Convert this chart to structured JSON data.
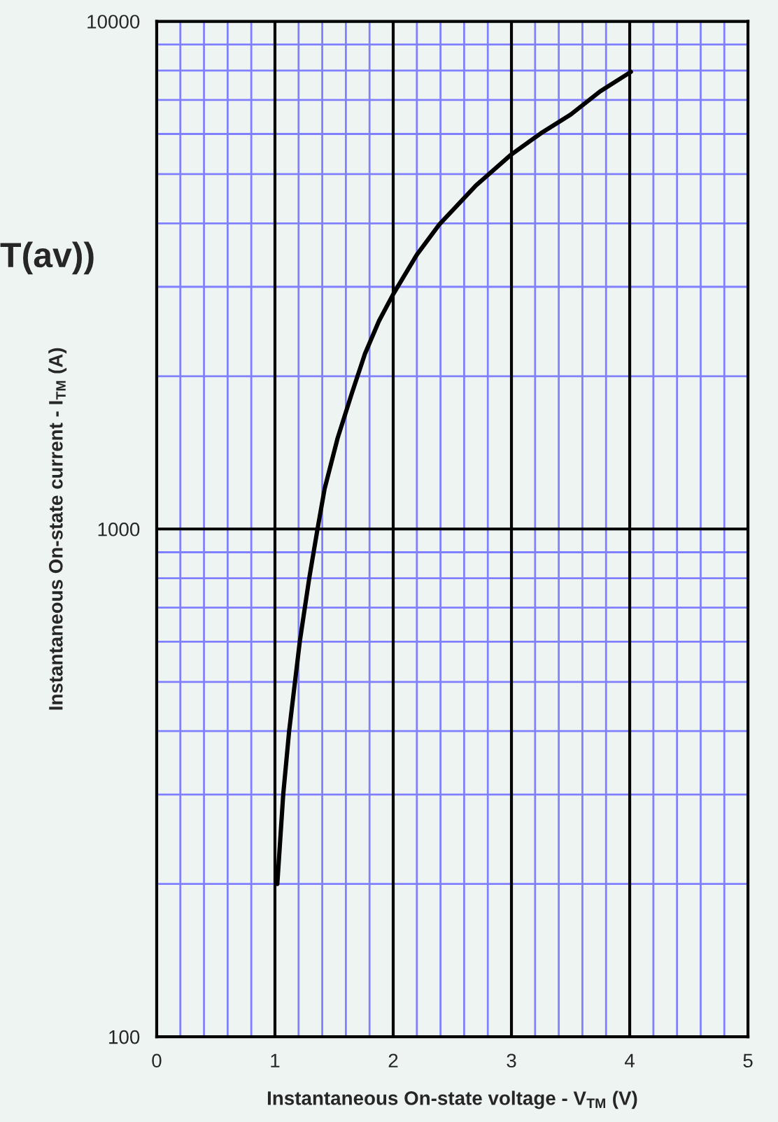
{
  "chart_data": {
    "type": "line",
    "xlabel": "Instantaneous On-state voltage - V$_{TM}$ (V)",
    "ylabel": "Instantaneous On-state current - I$_{TM}$ (A)",
    "annotations": [
      "T(av))"
    ],
    "series": [
      {
        "color": "#000000",
        "x": [
          1.02,
          1.07,
          1.12,
          1.21,
          1.29,
          1.36,
          1.42,
          1.53,
          1.65,
          1.76,
          1.88,
          2.0,
          2.2,
          2.39,
          2.7,
          3.0,
          3.25,
          3.5,
          3.75,
          4.01
        ],
        "values": [
          200,
          300,
          400,
          600,
          800,
          1000,
          1200,
          1510,
          1850,
          2210,
          2570,
          2900,
          3470,
          3980,
          4750,
          5470,
          6020,
          6550,
          7280,
          7950
        ]
      }
    ],
    "xlim": [
      0,
      5
    ],
    "xticks": [
      0,
      {
        "value": 0.2,
        "label": null
      },
      {
        "value": 0.4,
        "label": null
      },
      {
        "value": 0.6,
        "label": null
      },
      {
        "value": 0.8,
        "label": null
      },
      1,
      {
        "value": 1.2,
        "label": null
      },
      {
        "value": 1.4,
        "label": null
      },
      {
        "value": 1.6,
        "label": null
      },
      {
        "value": 1.8,
        "label": null
      },
      2,
      {
        "value": 2.2,
        "label": null
      },
      {
        "value": 2.4,
        "label": null
      },
      {
        "value": 2.6,
        "label": null
      },
      {
        "value": 2.8,
        "label": null
      },
      3,
      {
        "value": 3.2,
        "label": null
      },
      {
        "value": 3.4,
        "label": null
      },
      {
        "value": 3.6,
        "label": null
      },
      {
        "value": 3.8,
        "label": null
      },
      4,
      {
        "value": 4.2,
        "label": null
      },
      {
        "value": 4.4,
        "label": null
      },
      {
        "value": 4.6,
        "label": null
      },
      {
        "value": 4.8,
        "label": null
      },
      5
    ],
    "ylim": [
      100,
      10000
    ],
    "yticks": [
      100,
      {
        "value": 200,
        "label": null
      },
      {
        "value": 300,
        "label": null
      },
      {
        "value": 400,
        "label": null
      },
      {
        "value": 500,
        "label": null
      },
      {
        "value": 600,
        "label": null
      },
      {
        "value": 700,
        "label": null
      },
      {
        "value": 800,
        "label": null
      },
      {
        "value": 900,
        "label": null
      },
      1000,
      {
        "value": 2000,
        "label": null
      },
      {
        "value": 3000,
        "label": null
      },
      {
        "value": 4000,
        "label": null
      },
      {
        "value": 5000,
        "label": null
      },
      {
        "value": 6000,
        "label": null
      },
      {
        "value": 7000,
        "label": null
      },
      {
        "value": 8000,
        "label": null
      },
      {
        "value": 9000,
        "label": null
      },
      10000
    ],
    "log": "y",
    "grid": true,
    "marker": "none",
    "line_style": "solid"
  }
}
